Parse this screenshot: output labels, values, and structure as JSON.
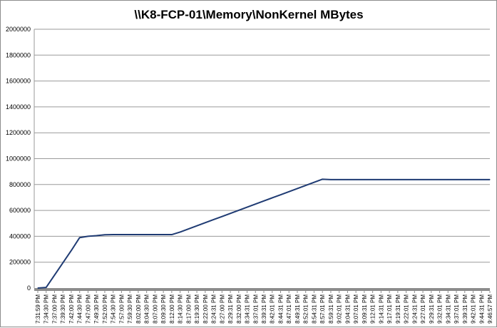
{
  "chart_data": {
    "type": "line",
    "title": "\\\\K8-FCP-01\\Memory\\NonKernel MBytes",
    "xlabel": "",
    "ylabel": "",
    "ylim": [
      0,
      2000000
    ],
    "y_ticks": [
      "0",
      "200000",
      "400000",
      "600000",
      "800000",
      "1000000",
      "1200000",
      "1400000",
      "1600000",
      "1800000",
      "2000000"
    ],
    "categories": [
      "7:31:59 PM",
      "7:34:30 PM",
      "7:37:00 PM",
      "7:39:30 PM",
      "7:42:00 PM",
      "7:44:30 PM",
      "7:47:00 PM",
      "7:49:30 PM",
      "7:52:00 PM",
      "7:54:30 PM",
      "7:57:00 PM",
      "7:59:30 PM",
      "8:02:00 PM",
      "8:04:30 PM",
      "8:07:00 PM",
      "8:09:30 PM",
      "8:12:00 PM",
      "8:14:30 PM",
      "8:17:00 PM",
      "8:19:30 PM",
      "8:22:00 PM",
      "8:24:31 PM",
      "8:27:00 PM",
      "8:29:31 PM",
      "8:32:00 PM",
      "8:34:31 PM",
      "8:37:01 PM",
      "8:39:31 PM",
      "8:42:01 PM",
      "8:44:31 PM",
      "8:47:01 PM",
      "8:49:31 PM",
      "8:52:01 PM",
      "8:54:31 PM",
      "8:57:01 PM",
      "8:59:31 PM",
      "9:02:01 PM",
      "9:04:31 PM",
      "9:07:01 PM",
      "9:09:31 PM",
      "9:12:01 PM",
      "9:14:31 PM",
      "9:17:01 PM",
      "9:19:31 PM",
      "9:22:01 PM",
      "9:24:31 PM",
      "9:27:01 PM",
      "9:29:31 PM",
      "9:32:01 PM",
      "9:34:31 PM",
      "9:37:01 PM",
      "9:39:31 PM",
      "9:42:01 PM",
      "9:44:31 PM",
      "9:46:57 PM"
    ],
    "series": [
      {
        "color": "#1f3b73",
        "values": [
          0,
          5000,
          100000,
          195000,
          290000,
          390000,
          400000,
          405000,
          412000,
          413000,
          413000,
          413000,
          413000,
          413000,
          413000,
          413000,
          413000,
          433000,
          457000,
          481000,
          505000,
          529000,
          553000,
          577000,
          601000,
          625000,
          649000,
          673000,
          697000,
          721000,
          745000,
          769000,
          793000,
          817000,
          841000,
          838000,
          838000,
          838000,
          838000,
          838000,
          838000,
          838000,
          838000,
          838000,
          838000,
          838000,
          838000,
          838000,
          838000,
          838000,
          838000,
          838000,
          838000,
          838000,
          838000
        ]
      }
    ],
    "grid": true,
    "legend": "none",
    "colors": {
      "line": "#1f3b73",
      "grid": "#9a9a9a",
      "x_axis": "#8c8c8c"
    }
  }
}
